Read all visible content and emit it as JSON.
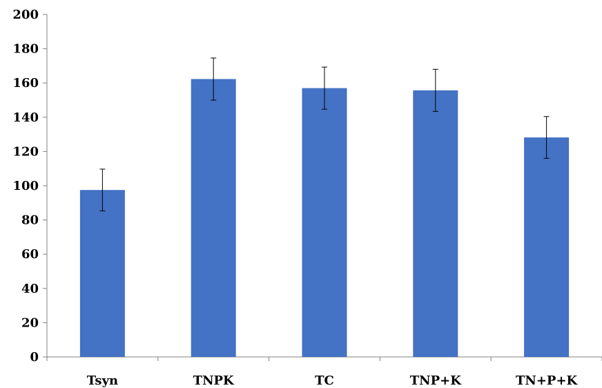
{
  "chart_data": {
    "type": "bar",
    "title": "",
    "xlabel": "",
    "ylabel": "",
    "categories": [
      "Tsyn",
      "TNPK",
      "TC",
      "TNP+K",
      "TN+P+K"
    ],
    "values": [
      97.5,
      162.3,
      157.0,
      155.7,
      128.2
    ],
    "error": [
      12.2,
      12.3,
      12.3,
      12.3,
      12.2
    ],
    "ylim": [
      0,
      200
    ],
    "yticks": [
      "0",
      "20",
      "40",
      "60",
      "80",
      "100",
      "120",
      "140",
      "160",
      "180",
      "200"
    ],
    "grid": false,
    "legend": "none",
    "bar_color": "#4472C4"
  }
}
